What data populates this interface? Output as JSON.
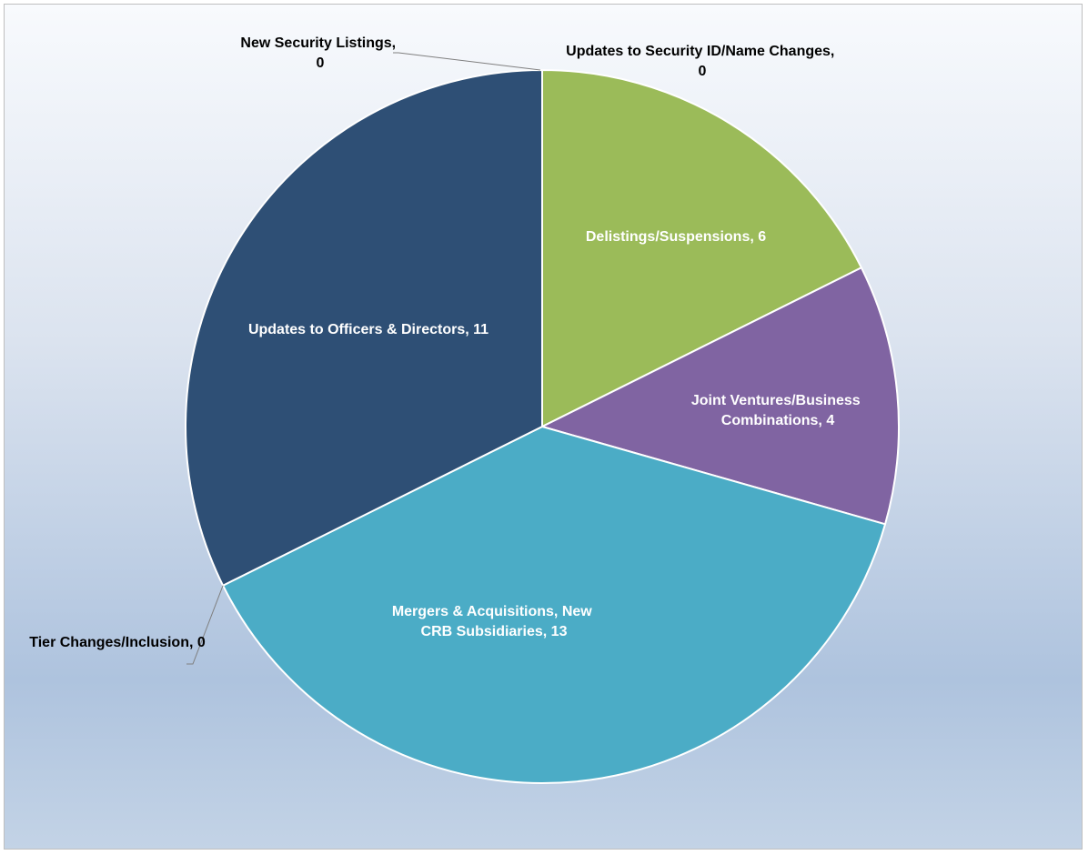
{
  "chart_data": {
    "type": "pie",
    "title": "",
    "start_angle_deg": 0,
    "direction": "clockwise",
    "slices": [
      {
        "label": "Updates to Security ID/Name Changes, 0",
        "name": "Updates to Security ID/Name Changes",
        "value": 0,
        "color": "#9bbb59",
        "label_position": "outside"
      },
      {
        "label": "Delistings/Suspensions, 6",
        "name": "Delistings/Suspensions",
        "value": 6,
        "color": "#9bbb59",
        "label_position": "inside"
      },
      {
        "label": "Joint Ventures/Business Combinations, 4",
        "name": "Joint Ventures/Business Combinations",
        "value": 4,
        "color": "#8064a2",
        "label_position": "inside"
      },
      {
        "label": "Mergers & Acquisitions, New CRB Subsidiaries, 13",
        "name": "Mergers & Acquisitions, New CRB Subsidiaries",
        "value": 13,
        "color": "#4bacc6",
        "label_position": "inside"
      },
      {
        "label": "Tier Changes/Inclusion, 0",
        "name": "Tier Changes/Inclusion",
        "value": 0,
        "color": "#4bacc6",
        "label_position": "outside"
      },
      {
        "label": "Updates to Officers & Directors, 11",
        "name": "Updates to Officers & Directors",
        "value": 11,
        "color": "#2e4f75",
        "label_position": "inside"
      },
      {
        "label": "New Security Listings, 0",
        "name": "New Security Listings",
        "value": 0,
        "color": "#2e4f75",
        "label_position": "outside"
      }
    ],
    "labels": {
      "security_id": [
        "Updates to Security ID/Name Changes,",
        "0"
      ],
      "delistings": [
        "Delistings/Suspensions, 6"
      ],
      "joint_ventures": [
        "Joint Ventures/Business",
        "Combinations, 4"
      ],
      "mergers": [
        "Mergers & Acquisitions, New",
        "CRB Subsidiaries, 13"
      ],
      "tier_changes": [
        "Tier Changes/Inclusion, 0"
      ],
      "officers": [
        "Updates to Officers & Directors, 11"
      ],
      "new_listings": [
        "New Security Listings,",
        "0"
      ]
    },
    "slice_border_color": "#ffffff",
    "leader_line_color": "#7f7f7f",
    "legend": "none"
  }
}
